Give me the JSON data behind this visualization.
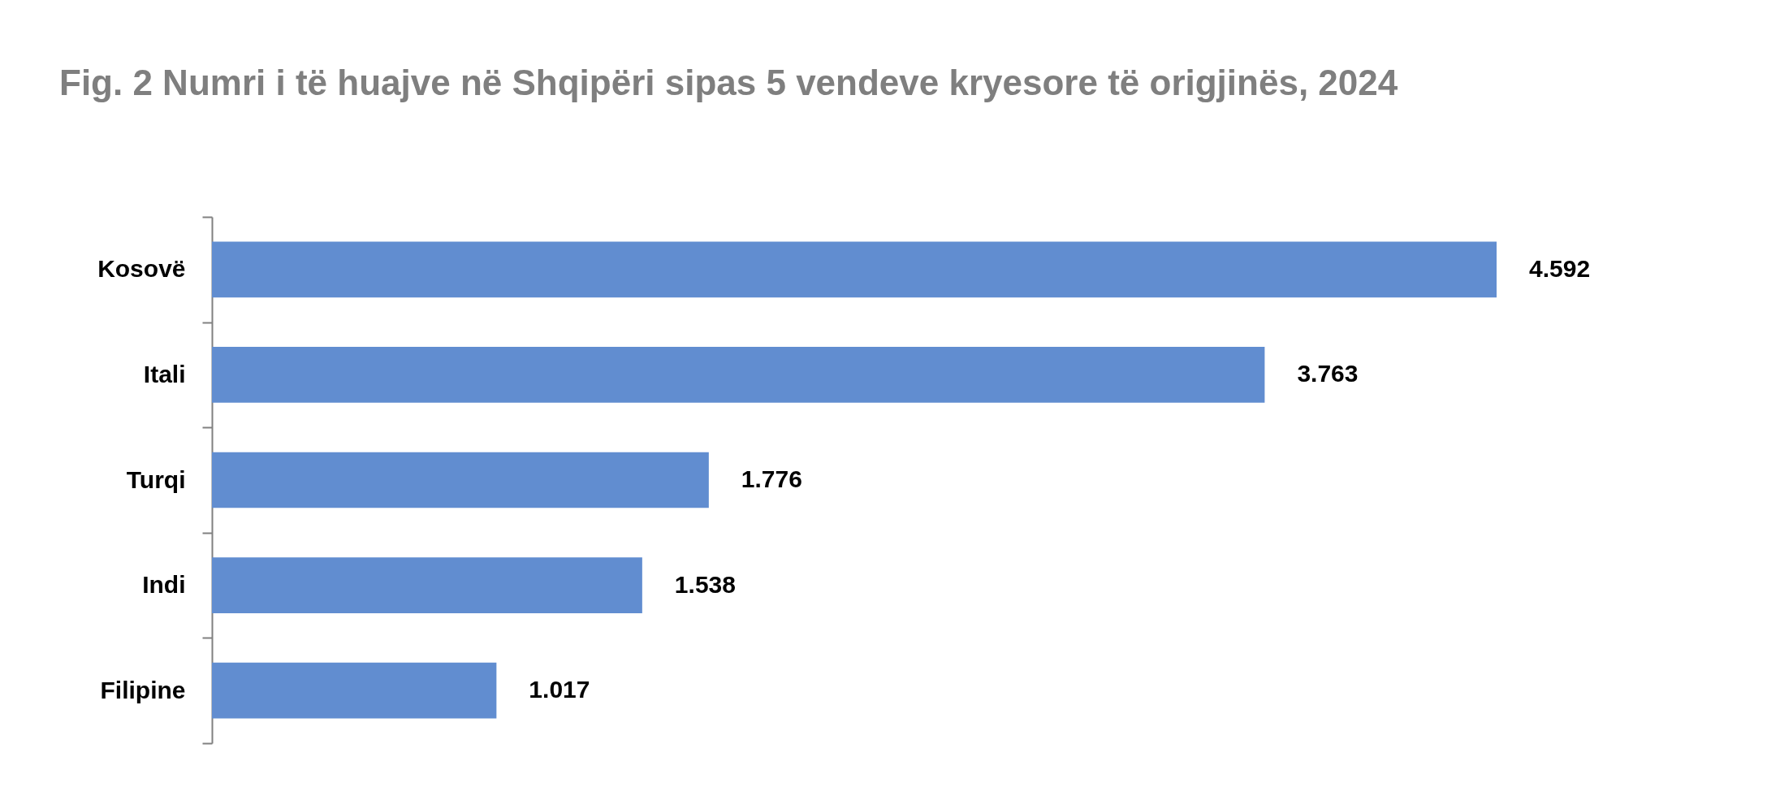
{
  "chart_data": {
    "type": "bar",
    "orientation": "horizontal",
    "title": "Fig. 2 Numri i të huajve në Shqipëri sipas 5 vendeve kryesore të origjinës, 2024",
    "categories": [
      "Kosovë",
      "Itali",
      "Turqi",
      "Indi",
      "Filipine"
    ],
    "values": [
      4592,
      3763,
      1776,
      1538,
      1017
    ],
    "value_labels": [
      "4.592",
      "3.763",
      "1.776",
      "1.538",
      "1.017"
    ],
    "color": "#618dd0"
  }
}
